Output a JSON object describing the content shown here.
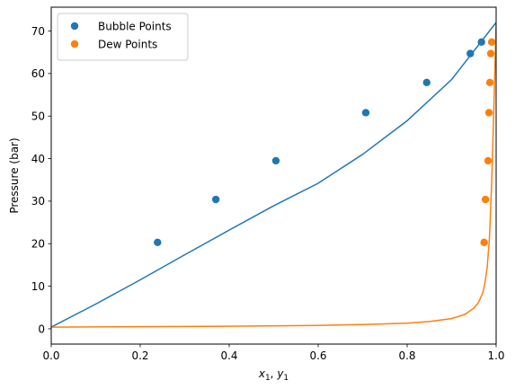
{
  "chart_data": {
    "type": "scatter",
    "title": "",
    "xlabel_main": "x",
    "xlabel_sub1": "1",
    "xlabel_sep": ", ",
    "xlabel_main2": "y",
    "xlabel_sub2": "1",
    "ylabel": "Pressure (bar)",
    "xlim": [
      0.0,
      1.0
    ],
    "ylim": [
      -3.6,
      75.6
    ],
    "xticks": [
      0.0,
      0.2,
      0.4,
      0.6,
      0.8,
      1.0
    ],
    "xtick_labels": [
      "0.0",
      "0.2",
      "0.4",
      "0.6",
      "0.8",
      "1.0"
    ],
    "yticks": [
      0,
      10,
      20,
      30,
      40,
      50,
      60,
      70
    ],
    "ytick_labels": [
      "0",
      "10",
      "20",
      "30",
      "40",
      "50",
      "60",
      "70"
    ],
    "grid": false,
    "legend_position": "top-left",
    "series": [
      {
        "name": "Bubble Points",
        "kind": "scatter",
        "color": "#1f77b4",
        "x": [
          0.239,
          0.37,
          0.505,
          0.707,
          0.844,
          0.942,
          0.967
        ],
        "y": [
          20.3,
          30.4,
          39.5,
          50.8,
          57.9,
          64.7,
          67.4
        ]
      },
      {
        "name": "Dew Points",
        "kind": "scatter",
        "color": "#ff7f0e",
        "x": [
          0.973,
          0.976,
          0.982,
          0.984,
          0.986,
          0.988,
          0.99
        ],
        "y": [
          20.3,
          30.4,
          39.5,
          50.8,
          57.9,
          64.7,
          67.4
        ]
      },
      {
        "kind": "line",
        "color": "#1f77b4",
        "x": [
          0.0,
          0.1,
          0.2,
          0.3,
          0.4,
          0.5,
          0.6,
          0.7,
          0.8,
          0.9,
          1.0
        ],
        "y": [
          0.4,
          5.8,
          11.5,
          17.4,
          23.2,
          28.9,
          34.2,
          41.0,
          48.9,
          58.6,
          72.0
        ]
      },
      {
        "kind": "line",
        "color": "#ff7f0e",
        "x": [
          0.0,
          0.2,
          0.4,
          0.6,
          0.7,
          0.8,
          0.85,
          0.9,
          0.93,
          0.95,
          0.96,
          0.97,
          0.975,
          0.98,
          0.985,
          0.99,
          0.995,
          1.0
        ],
        "y": [
          0.4,
          0.5,
          0.6,
          0.8,
          1.0,
          1.3,
          1.7,
          2.4,
          3.4,
          4.9,
          6.1,
          8.4,
          10.8,
          14.5,
          21.5,
          34.0,
          52.0,
          72.0
        ]
      }
    ]
  }
}
